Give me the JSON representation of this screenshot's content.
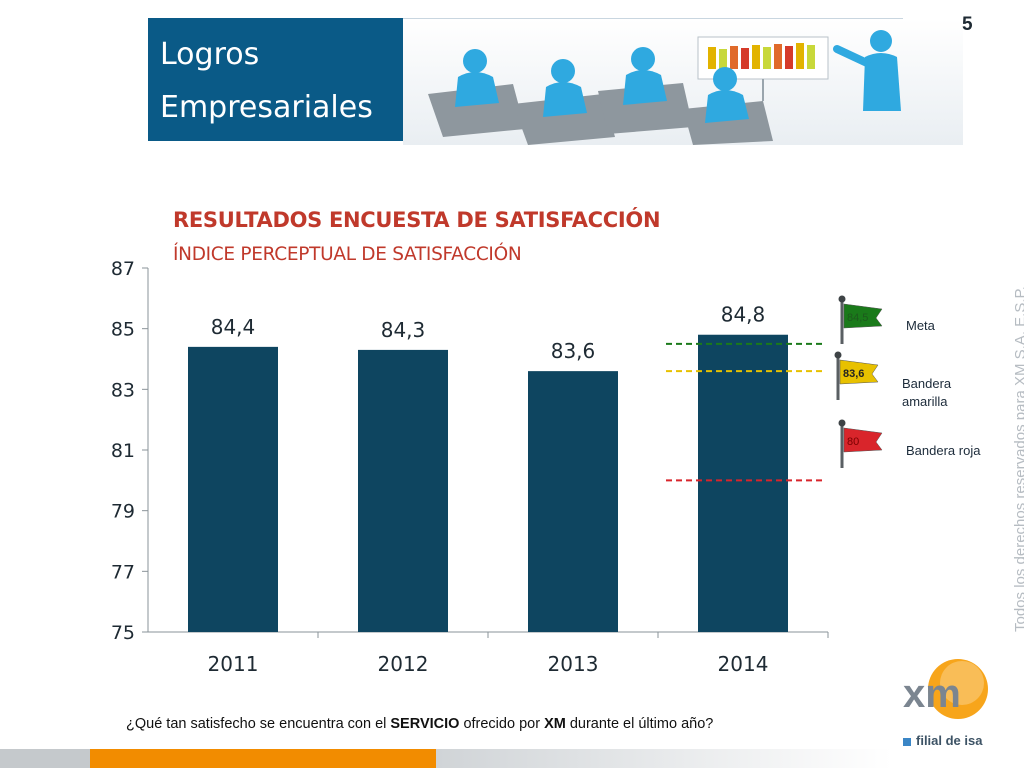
{
  "header": {
    "title_line1": "Logros",
    "title_line2": "Empresariales",
    "page_number": "5"
  },
  "chart_data": {
    "type": "bar",
    "title": "RESULTADOS ENCUESTA DE SATISFACCIÓN",
    "subtitle": "ÍNDICE PERCEPTUAL DE SATISFACCIÓN",
    "categories": [
      "2011",
      "2012",
      "2013",
      "2014"
    ],
    "values": [
      84.4,
      84.3,
      83.6,
      84.8
    ],
    "value_labels": [
      "84,4",
      "84,3",
      "83,6",
      "84,8"
    ],
    "ylim": [
      75,
      87
    ],
    "yticks": [
      "75",
      "77",
      "79",
      "81",
      "83",
      "85",
      "87"
    ],
    "bar_color": "#0e4560",
    "reference_lines": [
      {
        "name": "Meta",
        "value": 84.5,
        "flag_label": "84,5",
        "color": "#1a7a1a"
      },
      {
        "name": "Bandera amarilla",
        "value": 83.6,
        "flag_label": "83,6",
        "color": "#e8c100"
      },
      {
        "name": "Bandera roja",
        "value": 80,
        "flag_label": "80",
        "color": "#d9252b"
      }
    ]
  },
  "legend": {
    "meta": "Meta",
    "amarilla_1": "Bandera",
    "amarilla_2": "amarilla",
    "roja": "Bandera roja"
  },
  "question": {
    "part1": "¿Qué tan satisfecho se encuentra con el ",
    "bold1": "SERVICIO",
    "part2": " ofrecido por ",
    "bold2": "XM",
    "part3": " durante el último año?"
  },
  "sidebar_text": "Todos los derechos reservados para XM S.A. E.S.P.",
  "logo": {
    "brand": "xm",
    "tagline": "filial de isa"
  },
  "colors": {
    "accent_blue": "#0a5a87",
    "accent_orange": "#f28c00",
    "title_red": "#c0392b"
  }
}
